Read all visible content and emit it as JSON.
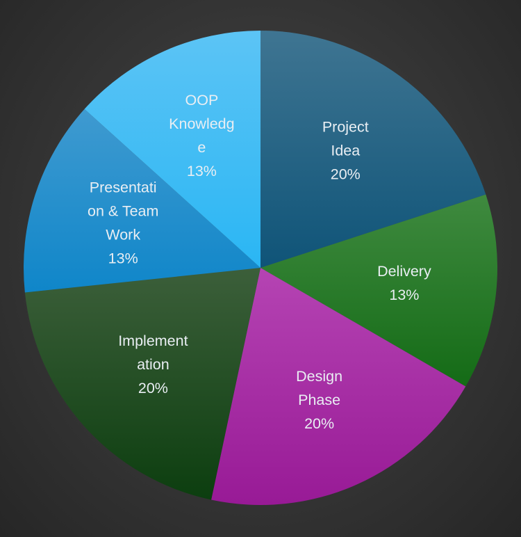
{
  "chart_data": {
    "type": "pie",
    "title": "",
    "start_angle_deg": 0,
    "direction": "clockwise",
    "slices": [
      {
        "label": [
          "Project",
          "Idea"
        ],
        "percent_label": "20%",
        "value": 20,
        "color_light": "#3f7592",
        "color_dark": "#0f5478"
      },
      {
        "label": [
          "Delivery"
        ],
        "percent_label": "13%",
        "value": 13.33,
        "color_light": "#3f8a3f",
        "color_dark": "#146b16"
      },
      {
        "label": [
          "Design",
          "Phase"
        ],
        "percent_label": "20%",
        "value": 20,
        "color_light": "#b544b3",
        "color_dark": "#981a96"
      },
      {
        "label": [
          "Implement",
          "ation"
        ],
        "percent_label": "20%",
        "value": 20,
        "color_light": "#3c5f3a",
        "color_dark": "#0c3e0f"
      },
      {
        "label": [
          "Presentati",
          "on & Team",
          "Work"
        ],
        "percent_label": "13%",
        "value": 13.33,
        "color_light": "#3f9ad0",
        "color_dark": "#0f86c9"
      },
      {
        "label": [
          "OOP",
          "Knowledg",
          "e"
        ],
        "percent_label": "13%",
        "value": 13.33,
        "color_light": "#5cc4f5",
        "color_dark": "#2ab6f4"
      }
    ]
  }
}
